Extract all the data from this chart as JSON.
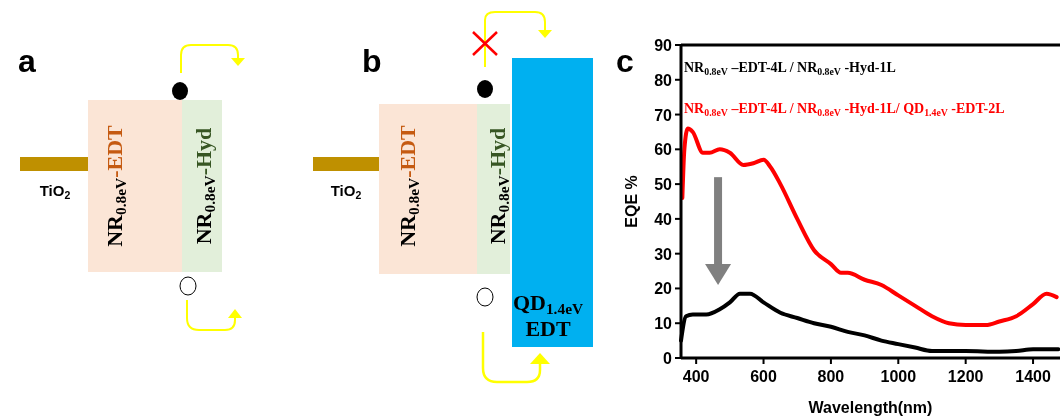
{
  "chart_data": {
    "type": "line",
    "xlabel": "Wavelength(nm)",
    "ylabel": "EQE %",
    "xlim": [
      355,
      1480
    ],
    "xticks": [
      400,
      600,
      800,
      1000,
      1200,
      1400
    ],
    "ylim": [
      0,
      90
    ],
    "yticks": [
      0,
      10,
      20,
      30,
      40,
      50,
      60,
      70,
      80,
      90
    ],
    "grid": false,
    "legend": "top left",
    "line_style": "solid",
    "marker": "none",
    "annotations": [
      "a",
      "b",
      "c",
      "TiO$_{2}$",
      "NR$_{0.8eV}$-EDT",
      "NR$_{0.8eV}$-Hyd",
      "TiO$_{2}$",
      "NR$_{0.8eV}$-EDT",
      "NR$_{0.8eV}$-Hyd",
      "QD$_{1.4eV}$",
      "EDT"
    ],
    "series": [
      {
        "name": "NR$_{0.8eV}$ –EDT-4L / NR$_{0.8eV}$ -Hyd-1L",
        "color": "#000000",
        "x": [
          355,
          370,
          390,
          430,
          470,
          500,
          530,
          560,
          600,
          650,
          700,
          750,
          800,
          850,
          900,
          950,
          1000,
          1050,
          1100,
          1150,
          1200,
          1300,
          1350,
          1400,
          1450,
          1475
        ],
        "values": [
          5,
          12,
          12.5,
          12.5,
          14,
          16,
          18.5,
          18.5,
          16,
          13,
          11.5,
          10,
          9,
          7.5,
          6.5,
          5,
          4,
          3,
          2,
          2,
          2,
          1.8,
          2,
          2.5,
          2.5,
          2.5
        ]
      },
      {
        "name": "NR$_{0.8eV}$ –EDT-4L / NR$_{0.8eV}$ -Hyd-1L/ QD$_{1.4eV}$ -EDT-2L",
        "color": "#ff0000",
        "x": [
          359,
          365,
          375,
          390,
          420,
          440,
          470,
          500,
          540,
          570,
          600,
          620,
          650,
          700,
          750,
          800,
          830,
          850,
          900,
          950,
          1000,
          1050,
          1100,
          1150,
          1200,
          1260,
          1300,
          1350,
          1400,
          1440,
          1470
        ],
        "values": [
          46,
          60,
          66,
          65,
          59,
          59,
          60,
          59,
          55.5,
          56,
          57,
          55,
          50,
          40,
          31,
          27,
          24.5,
          24.5,
          22.5,
          21,
          18,
          15,
          12,
          10,
          9.5,
          9.5,
          10.5,
          12,
          15.5,
          18.5,
          17.5
        ]
      }
    ]
  }
}
